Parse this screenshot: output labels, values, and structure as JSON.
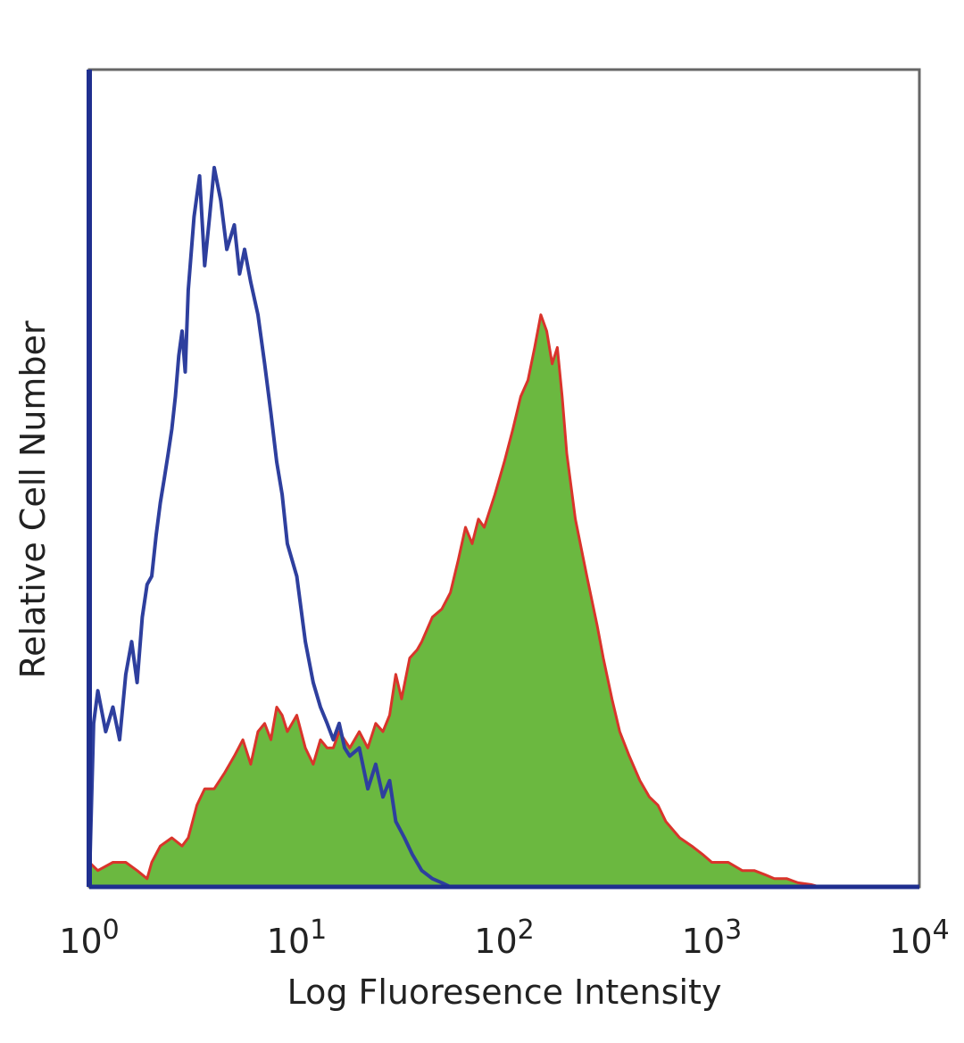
{
  "chart_data": {
    "type": "area",
    "title": "",
    "xlabel": "Log Fluoresence Intensity",
    "ylabel": "Relative Cell Number",
    "x_scale": "log",
    "xlim": [
      1,
      10000
    ],
    "ylim": [
      0,
      100
    ],
    "x_ticks": [
      {
        "value": 1,
        "base": "10",
        "exp": "0"
      },
      {
        "value": 10,
        "base": "10",
        "exp": "1"
      },
      {
        "value": 100,
        "base": "10",
        "exp": "2"
      },
      {
        "value": 1000,
        "base": "10",
        "exp": "3"
      },
      {
        "value": 10000,
        "base": "10",
        "exp": "4"
      }
    ],
    "grid": false,
    "legend": "none",
    "series": [
      {
        "style": "line",
        "color": "#2e3f9e",
        "x": [
          1,
          1.05,
          1.1,
          1.2,
          1.3,
          1.4,
          1.5,
          1.6,
          1.7,
          1.8,
          1.9,
          2.0,
          2.1,
          2.2,
          2.3,
          2.4,
          2.5,
          2.6,
          2.7,
          2.8,
          2.9,
          3.0,
          3.2,
          3.4,
          3.6,
          3.8,
          4.0,
          4.3,
          4.6,
          5.0,
          5.3,
          5.6,
          6.0,
          6.5,
          7.0,
          7.5,
          8.0,
          8.5,
          9.0,
          10.0,
          11.0,
          12.0,
          13.0,
          14.0,
          15.0,
          16.0,
          17.0,
          18.0,
          20.0,
          22.0,
          24.0,
          26.0,
          28.0,
          30.0,
          33.0,
          36.0,
          40.0,
          45.0,
          50.0,
          55.0
        ],
        "y": [
          0,
          20,
          24,
          19,
          22,
          18,
          26,
          30,
          25,
          33,
          37,
          38,
          43,
          47,
          50,
          53,
          56,
          60,
          65,
          68,
          63,
          73,
          82,
          87,
          76,
          82,
          88,
          84,
          78,
          81,
          75,
          78,
          74,
          70,
          64,
          58,
          52,
          48,
          42,
          38,
          30,
          25,
          22,
          20,
          18,
          20,
          17,
          16,
          17,
          12,
          15,
          11,
          13,
          8,
          6,
          4,
          2,
          1,
          0.5,
          0
        ]
      },
      {
        "style": "filled",
        "color": "#6bb840",
        "edge_color": "#d9342b",
        "x": [
          1,
          1.1,
          1.3,
          1.5,
          1.7,
          1.9,
          2.0,
          2.2,
          2.5,
          2.8,
          3.0,
          3.3,
          3.6,
          4.0,
          4.5,
          5.0,
          5.5,
          6.0,
          6.5,
          7.0,
          7.5,
          8.0,
          8.5,
          9.0,
          10.0,
          11.0,
          12.0,
          13.0,
          14.0,
          15.0,
          16.0,
          18.0,
          20.0,
          22.0,
          24.0,
          26.0,
          28.0,
          30.0,
          32.0,
          35.0,
          38.0,
          40.0,
          45.0,
          50.0,
          55.0,
          60.0,
          65.0,
          70.0,
          75.0,
          80.0,
          90.0,
          100.0,
          110.0,
          120.0,
          130.0,
          140.0,
          150.0,
          160.0,
          170.0,
          180.0,
          190.0,
          200.0,
          220.0,
          250.0,
          280.0,
          300.0,
          330.0,
          360.0,
          400.0,
          450.0,
          500.0,
          550.0,
          600.0,
          700.0,
          800.0,
          900.0,
          1000.0,
          1200.0,
          1400.0,
          1600.0,
          1800.0,
          2000.0,
          2300.0,
          2600.0,
          3000.0,
          3300.0
        ],
        "y": [
          3,
          2,
          3,
          3,
          2,
          1,
          3,
          5,
          6,
          5,
          6,
          10,
          12,
          12,
          14,
          16,
          18,
          15,
          19,
          20,
          18,
          22,
          21,
          19,
          21,
          17,
          15,
          18,
          17,
          17,
          19,
          17,
          19,
          17,
          20,
          19,
          21,
          26,
          23,
          28,
          29,
          30,
          33,
          34,
          36,
          40,
          44,
          42,
          45,
          44,
          48,
          52,
          56,
          60,
          62,
          66,
          70,
          68,
          64,
          66,
          60,
          53,
          45,
          38,
          32,
          28,
          23,
          19,
          16,
          13,
          11,
          10,
          8,
          6,
          5,
          4,
          3,
          3,
          2,
          2,
          1.5,
          1,
          1,
          0.5,
          0.3,
          0
        ]
      }
    ]
  }
}
